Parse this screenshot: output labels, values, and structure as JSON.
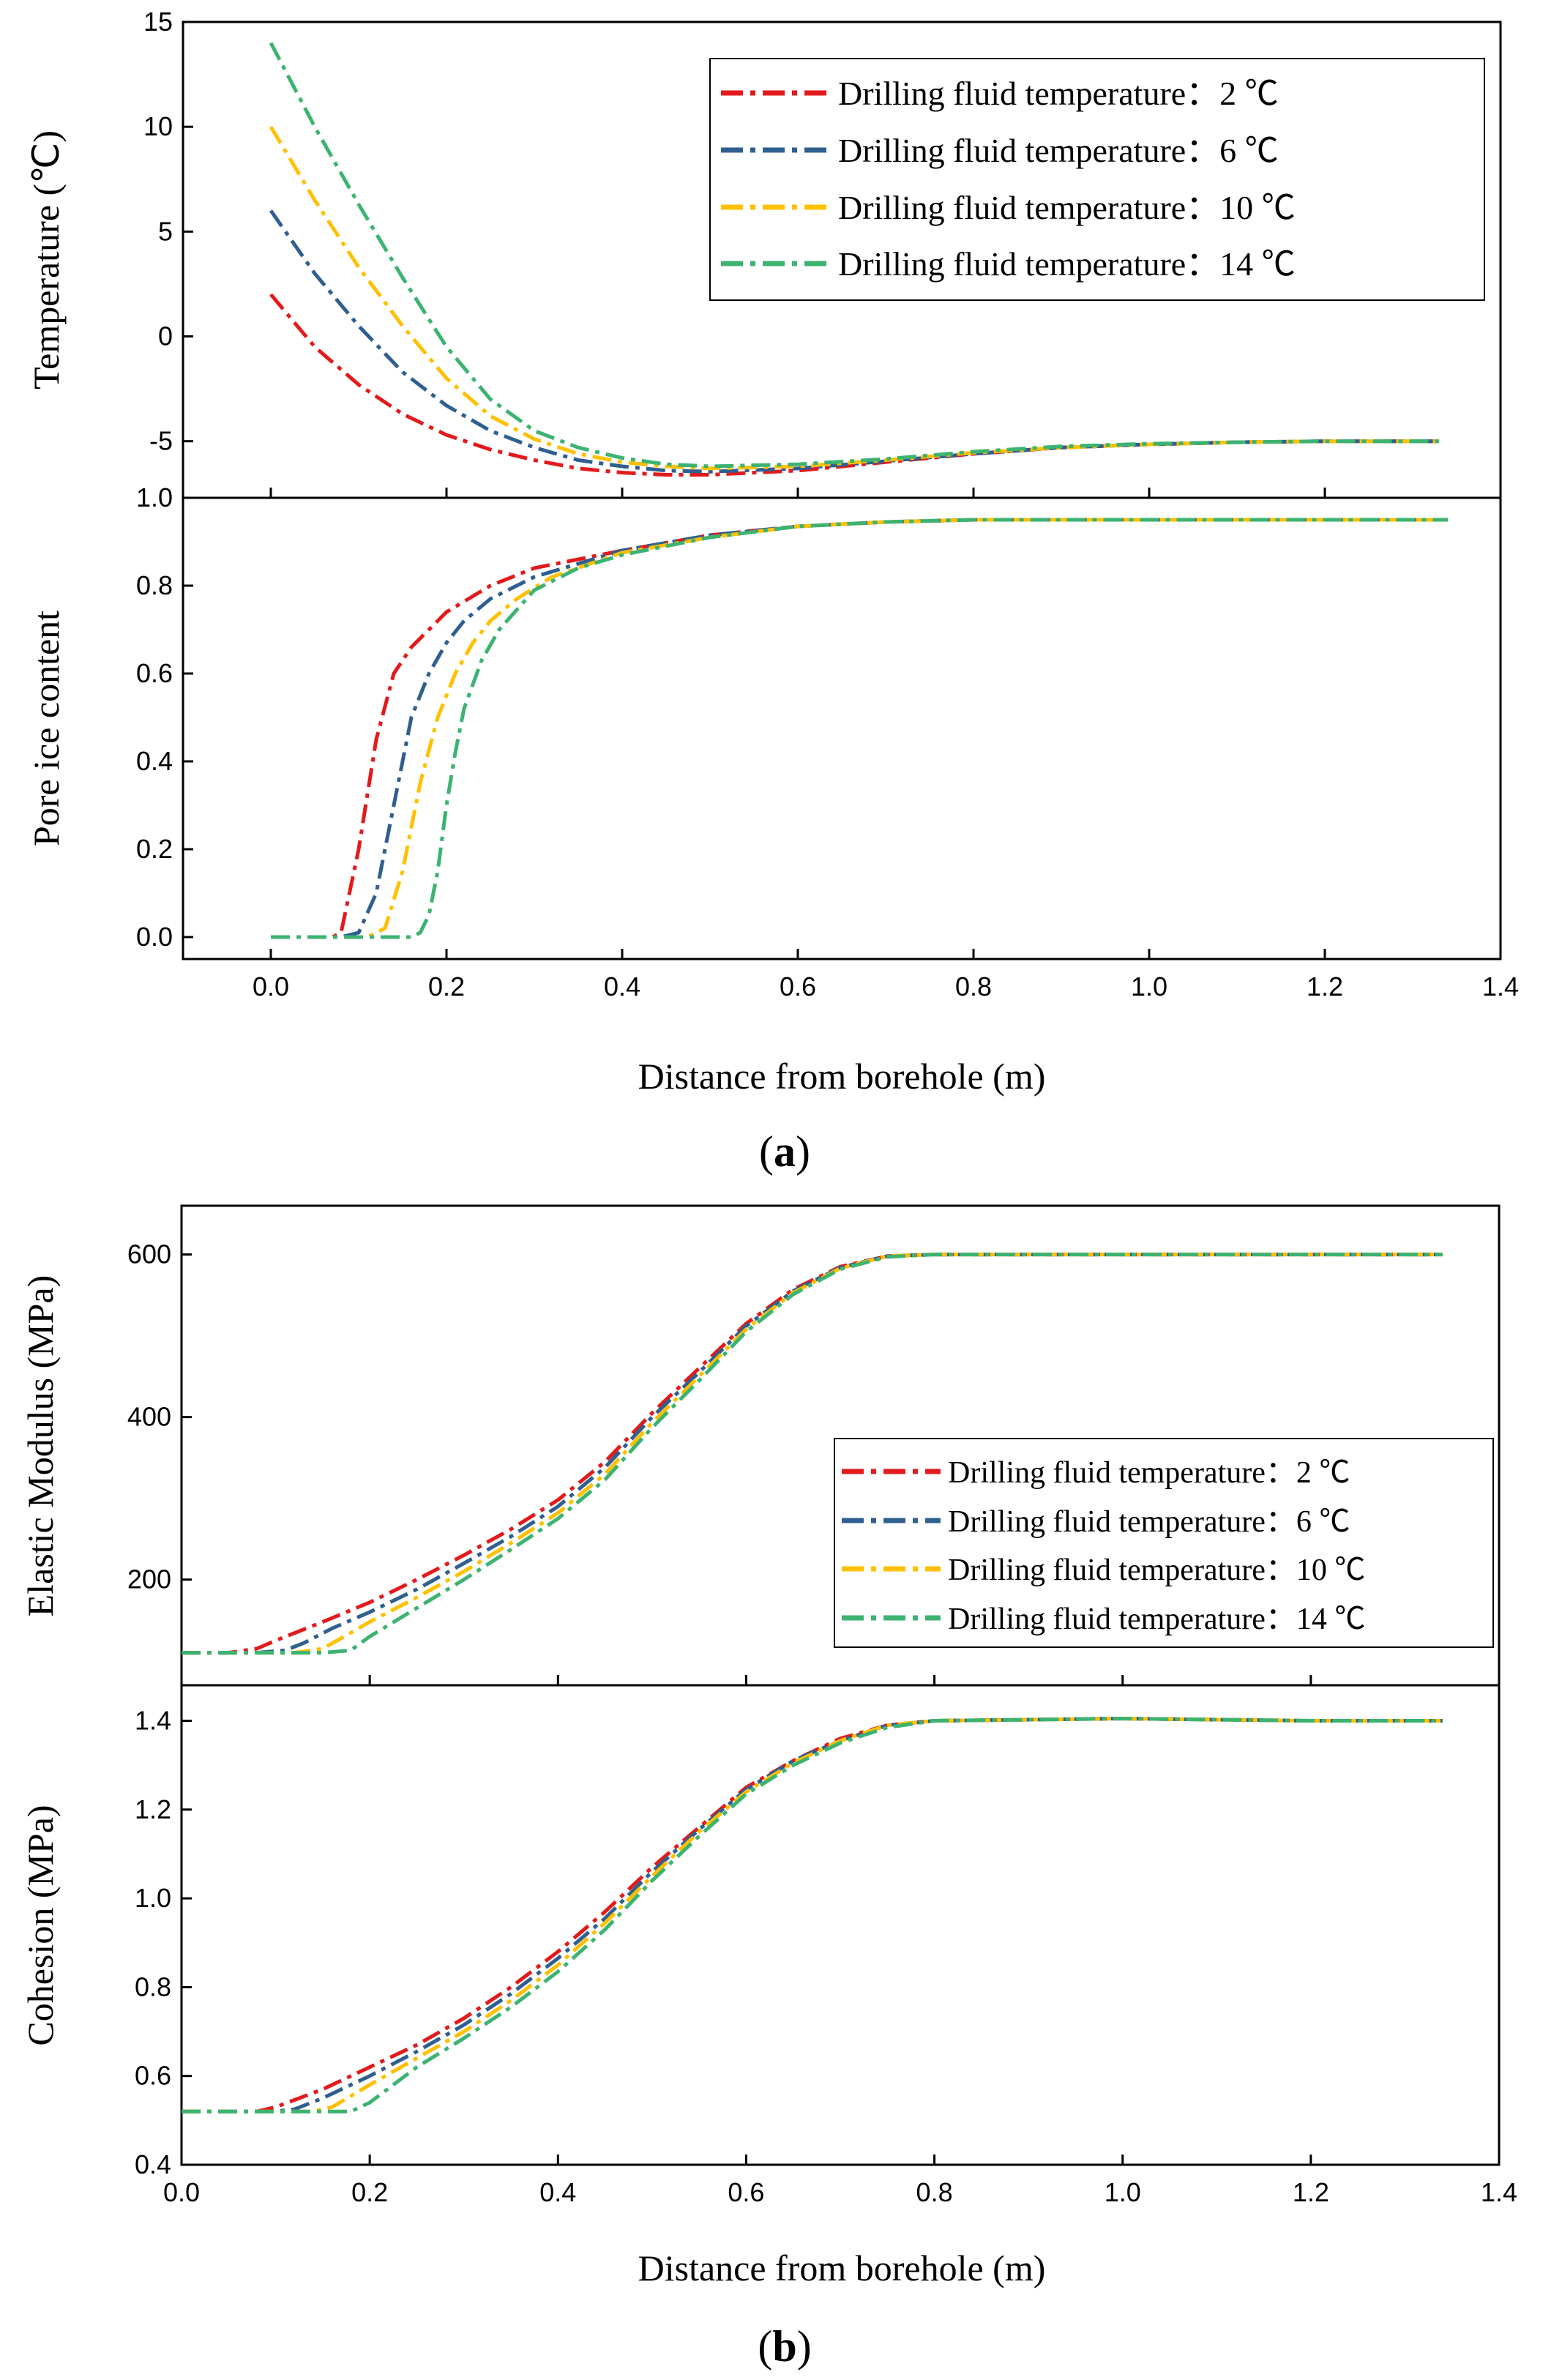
{
  "series_styles": [
    {
      "name": "Drilling fluid temperature：2 ℃",
      "color": "#e31a1c"
    },
    {
      "name": "Drilling fluid temperature：6 ℃",
      "color": "#2f5f8f"
    },
    {
      "name": "Drilling fluid temperature：10 ℃",
      "color": "#ffc000"
    },
    {
      "name": "Drilling fluid temperature：14 ℃",
      "color": "#3cb371"
    }
  ],
  "panel_labels": {
    "a": "a",
    "b": "b"
  },
  "chart_data": [
    {
      "id": "temperature",
      "type": "line",
      "title": "",
      "xlabel": "",
      "ylabel": "Temperature (℃)",
      "xlim": [
        -0.1,
        1.4
      ],
      "ylim": [
        -7.7,
        15
      ],
      "yticks": [
        -5,
        0,
        5,
        10,
        15
      ],
      "ytick_labels": [
        "-5",
        "0",
        "5",
        "10",
        "15"
      ],
      "legend": "top-right",
      "series": [
        {
          "name": "Drilling fluid temperature：2 ℃",
          "x": [
            0,
            0.05,
            0.1,
            0.15,
            0.2,
            0.25,
            0.3,
            0.35,
            0.4,
            0.45,
            0.5,
            0.6,
            0.7,
            0.8,
            0.9,
            1.0,
            1.1,
            1.2,
            1.33
          ],
          "values": [
            2,
            -0.5,
            -2.3,
            -3.7,
            -4.7,
            -5.4,
            -5.9,
            -6.3,
            -6.5,
            -6.6,
            -6.6,
            -6.4,
            -6.0,
            -5.6,
            -5.3,
            -5.15,
            -5.05,
            -5.0,
            -5.0
          ]
        },
        {
          "name": "Drilling fluid temperature：6 ℃",
          "x": [
            0,
            0.05,
            0.1,
            0.15,
            0.2,
            0.25,
            0.3,
            0.35,
            0.4,
            0.45,
            0.5,
            0.6,
            0.7,
            0.8,
            0.9,
            1.0,
            1.1,
            1.2,
            1.33
          ],
          "values": [
            6,
            3.0,
            0.5,
            -1.7,
            -3.3,
            -4.5,
            -5.3,
            -5.9,
            -6.2,
            -6.4,
            -6.45,
            -6.3,
            -5.95,
            -5.6,
            -5.3,
            -5.15,
            -5.05,
            -5.0,
            -5.0
          ]
        },
        {
          "name": "Drilling fluid temperature：10 ℃",
          "x": [
            0,
            0.05,
            0.1,
            0.15,
            0.2,
            0.25,
            0.3,
            0.35,
            0.4,
            0.45,
            0.5,
            0.6,
            0.7,
            0.8,
            0.9,
            1.0,
            1.1,
            1.2,
            1.33
          ],
          "values": [
            10,
            6.5,
            3.3,
            0.5,
            -2.0,
            -3.8,
            -4.9,
            -5.6,
            -6.0,
            -6.2,
            -6.3,
            -6.2,
            -5.9,
            -5.55,
            -5.3,
            -5.15,
            -5.05,
            -5.0,
            -5.0
          ]
        },
        {
          "name": "Drilling fluid temperature：14 ℃",
          "x": [
            0,
            0.05,
            0.1,
            0.15,
            0.2,
            0.25,
            0.3,
            0.35,
            0.4,
            0.45,
            0.5,
            0.6,
            0.7,
            0.8,
            0.9,
            1.0,
            1.1,
            1.2,
            1.33
          ],
          "values": [
            14,
            10.0,
            6.3,
            2.8,
            -0.5,
            -3.0,
            -4.5,
            -5.3,
            -5.8,
            -6.1,
            -6.2,
            -6.1,
            -5.85,
            -5.5,
            -5.25,
            -5.12,
            -5.05,
            -5.0,
            -5.0
          ]
        }
      ]
    },
    {
      "id": "pore-ice",
      "type": "line",
      "title": "",
      "xlabel": "Distance from borehole (m)",
      "ylabel": "Pore ice content",
      "xlim": [
        -0.1,
        1.4
      ],
      "ylim": [
        -0.05,
        1.0
      ],
      "xticks": [
        0,
        0.2,
        0.4,
        0.6,
        0.8,
        1.0,
        1.2,
        1.4
      ],
      "xtick_labels": [
        "0.0",
        "0.2",
        "0.4",
        "0.6",
        "0.8",
        "1.0",
        "1.2",
        "1.4"
      ],
      "yticks": [
        0,
        0.2,
        0.4,
        0.6,
        0.8,
        1.0
      ],
      "ytick_labels": [
        "0.0",
        "0.2",
        "0.4",
        "0.6",
        "0.8",
        "1.0"
      ],
      "series": [
        {
          "name": "Drilling fluid temperature：2 ℃",
          "x": [
            0,
            0.07,
            0.08,
            0.1,
            0.12,
            0.14,
            0.16,
            0.18,
            0.2,
            0.25,
            0.3,
            0.4,
            0.5,
            0.6,
            0.7,
            0.8,
            1.0,
            1.2,
            1.34
          ],
          "values": [
            0,
            0,
            0.01,
            0.2,
            0.45,
            0.6,
            0.66,
            0.7,
            0.74,
            0.8,
            0.84,
            0.88,
            0.915,
            0.935,
            0.945,
            0.95,
            0.95,
            0.95,
            0.95
          ]
        },
        {
          "name": "Drilling fluid temperature：6 ℃",
          "x": [
            0,
            0.08,
            0.1,
            0.12,
            0.14,
            0.16,
            0.18,
            0.2,
            0.22,
            0.25,
            0.3,
            0.4,
            0.5,
            0.6,
            0.7,
            0.8,
            1.0,
            1.2,
            1.34
          ],
          "values": [
            0,
            0,
            0.01,
            0.1,
            0.3,
            0.5,
            0.6,
            0.67,
            0.72,
            0.77,
            0.82,
            0.88,
            0.915,
            0.935,
            0.945,
            0.95,
            0.95,
            0.95,
            0.95
          ]
        },
        {
          "name": "Drilling fluid temperature：10 ℃",
          "x": [
            0,
            0.11,
            0.13,
            0.15,
            0.17,
            0.19,
            0.21,
            0.23,
            0.25,
            0.28,
            0.32,
            0.4,
            0.5,
            0.6,
            0.7,
            0.8,
            1.0,
            1.2,
            1.34
          ],
          "values": [
            0,
            0,
            0.02,
            0.15,
            0.35,
            0.5,
            0.6,
            0.67,
            0.72,
            0.77,
            0.82,
            0.875,
            0.91,
            0.935,
            0.945,
            0.95,
            0.95,
            0.95,
            0.95
          ]
        },
        {
          "name": "Drilling fluid temperature：14 ℃",
          "x": [
            0,
            0.16,
            0.17,
            0.18,
            0.19,
            0.2,
            0.21,
            0.22,
            0.24,
            0.26,
            0.3,
            0.35,
            0.4,
            0.5,
            0.6,
            0.7,
            0.8,
            1.0,
            1.34
          ],
          "values": [
            0,
            0,
            0.01,
            0.05,
            0.15,
            0.3,
            0.42,
            0.52,
            0.63,
            0.7,
            0.79,
            0.84,
            0.87,
            0.91,
            0.935,
            0.945,
            0.95,
            0.95,
            0.95
          ]
        }
      ]
    },
    {
      "id": "elastic-modulus",
      "type": "line",
      "title": "",
      "xlabel": "",
      "ylabel": "Elastic Modulus (MPa)",
      "xlim": [
        0,
        1.4
      ],
      "ylim": [
        70,
        660
      ],
      "yticks": [
        200,
        400,
        600
      ],
      "ytick_labels": [
        "200",
        "400",
        "600"
      ],
      "legend": "lower-right",
      "series": [
        {
          "name": "Drilling fluid temperature：2 ℃",
          "x": [
            0,
            0.05,
            0.08,
            0.1,
            0.15,
            0.2,
            0.25,
            0.3,
            0.35,
            0.4,
            0.45,
            0.5,
            0.55,
            0.6,
            0.65,
            0.7,
            0.75,
            0.8,
            1.0,
            1.2,
            1.34
          ],
          "values": [
            110,
            110,
            115,
            125,
            148,
            172,
            200,
            230,
            262,
            298,
            345,
            405,
            460,
            515,
            557,
            585,
            598,
            600,
            600,
            600,
            600
          ]
        },
        {
          "name": "Drilling fluid temperature：6 ℃",
          "x": [
            0,
            0.08,
            0.11,
            0.13,
            0.16,
            0.2,
            0.25,
            0.3,
            0.35,
            0.4,
            0.45,
            0.5,
            0.55,
            0.6,
            0.65,
            0.7,
            0.75,
            0.8,
            1.0,
            1.2,
            1.34
          ],
          "values": [
            110,
            110,
            113,
            122,
            140,
            160,
            188,
            220,
            253,
            290,
            338,
            400,
            455,
            512,
            555,
            584,
            598,
            600,
            600,
            600,
            600
          ]
        },
        {
          "name": "Drilling fluid temperature：10 ℃",
          "x": [
            0,
            0.12,
            0.15,
            0.17,
            0.2,
            0.25,
            0.3,
            0.35,
            0.4,
            0.45,
            0.5,
            0.55,
            0.6,
            0.65,
            0.7,
            0.75,
            0.8,
            1.0,
            1.2,
            1.34
          ],
          "values": [
            110,
            110,
            115,
            128,
            148,
            178,
            210,
            245,
            282,
            330,
            393,
            450,
            508,
            553,
            583,
            598,
            600,
            600,
            600,
            600
          ]
        },
        {
          "name": "Drilling fluid temperature：14 ℃",
          "x": [
            0,
            0.15,
            0.18,
            0.2,
            0.25,
            0.3,
            0.35,
            0.4,
            0.45,
            0.5,
            0.55,
            0.6,
            0.65,
            0.7,
            0.75,
            0.8,
            1.0,
            1.2,
            1.34
          ],
          "values": [
            110,
            110,
            113,
            130,
            165,
            200,
            237,
            275,
            323,
            387,
            445,
            505,
            551,
            582,
            597,
            600,
            600,
            600,
            600
          ]
        }
      ]
    },
    {
      "id": "cohesion",
      "type": "line",
      "title": "",
      "xlabel": "Distance from borehole (m)",
      "ylabel": "Cohesion (MPa)",
      "xlim": [
        0,
        1.4
      ],
      "ylim": [
        0.4,
        1.48
      ],
      "xticks": [
        0,
        0.2,
        0.4,
        0.6,
        0.8,
        1.0,
        1.2,
        1.4
      ],
      "xtick_labels": [
        "0.0",
        "0.2",
        "0.4",
        "0.6",
        "0.8",
        "1.0",
        "1.2",
        "1.4"
      ],
      "yticks": [
        0.4,
        0.6,
        0.8,
        1.0,
        1.2,
        1.4
      ],
      "ytick_labels": [
        "0.4",
        "0.6",
        "0.8",
        "1.0",
        "1.2",
        "1.4"
      ],
      "series": [
        {
          "name": "Drilling fluid temperature：2 ℃",
          "x": [
            0,
            0.05,
            0.08,
            0.1,
            0.15,
            0.2,
            0.25,
            0.3,
            0.35,
            0.4,
            0.45,
            0.5,
            0.55,
            0.6,
            0.65,
            0.7,
            0.75,
            0.8,
            1.0,
            1.2,
            1.34
          ],
          "values": [
            0.52,
            0.52,
            0.52,
            0.53,
            0.57,
            0.62,
            0.67,
            0.73,
            0.8,
            0.88,
            0.97,
            1.07,
            1.16,
            1.25,
            1.31,
            1.36,
            1.39,
            1.4,
            1.405,
            1.4,
            1.4
          ]
        },
        {
          "name": "Drilling fluid temperature：6 ℃",
          "x": [
            0,
            0.1,
            0.12,
            0.15,
            0.2,
            0.25,
            0.3,
            0.35,
            0.4,
            0.45,
            0.5,
            0.55,
            0.6,
            0.65,
            0.7,
            0.75,
            0.8,
            1.0,
            1.2,
            1.34
          ],
          "values": [
            0.52,
            0.52,
            0.525,
            0.55,
            0.6,
            0.655,
            0.715,
            0.785,
            0.865,
            0.955,
            1.06,
            1.155,
            1.245,
            1.31,
            1.355,
            1.39,
            1.4,
            1.405,
            1.4,
            1.4
          ]
        },
        {
          "name": "Drilling fluid temperature：10 ℃",
          "x": [
            0,
            0.14,
            0.16,
            0.2,
            0.25,
            0.3,
            0.35,
            0.4,
            0.45,
            0.5,
            0.55,
            0.6,
            0.65,
            0.7,
            0.75,
            0.8,
            1.0,
            1.2,
            1.34
          ],
          "values": [
            0.52,
            0.52,
            0.53,
            0.58,
            0.64,
            0.7,
            0.77,
            0.85,
            0.945,
            1.05,
            1.15,
            1.24,
            1.305,
            1.355,
            1.39,
            1.4,
            1.405,
            1.4,
            1.4
          ]
        },
        {
          "name": "Drilling fluid temperature：14 ℃",
          "x": [
            0,
            0.18,
            0.2,
            0.25,
            0.3,
            0.35,
            0.4,
            0.45,
            0.5,
            0.55,
            0.6,
            0.65,
            0.7,
            0.75,
            0.8,
            1.0,
            1.2,
            1.34
          ],
          "values": [
            0.52,
            0.52,
            0.54,
            0.62,
            0.685,
            0.755,
            0.835,
            0.93,
            1.04,
            1.14,
            1.235,
            1.3,
            1.35,
            1.385,
            1.4,
            1.405,
            1.4,
            1.4
          ]
        }
      ]
    }
  ]
}
